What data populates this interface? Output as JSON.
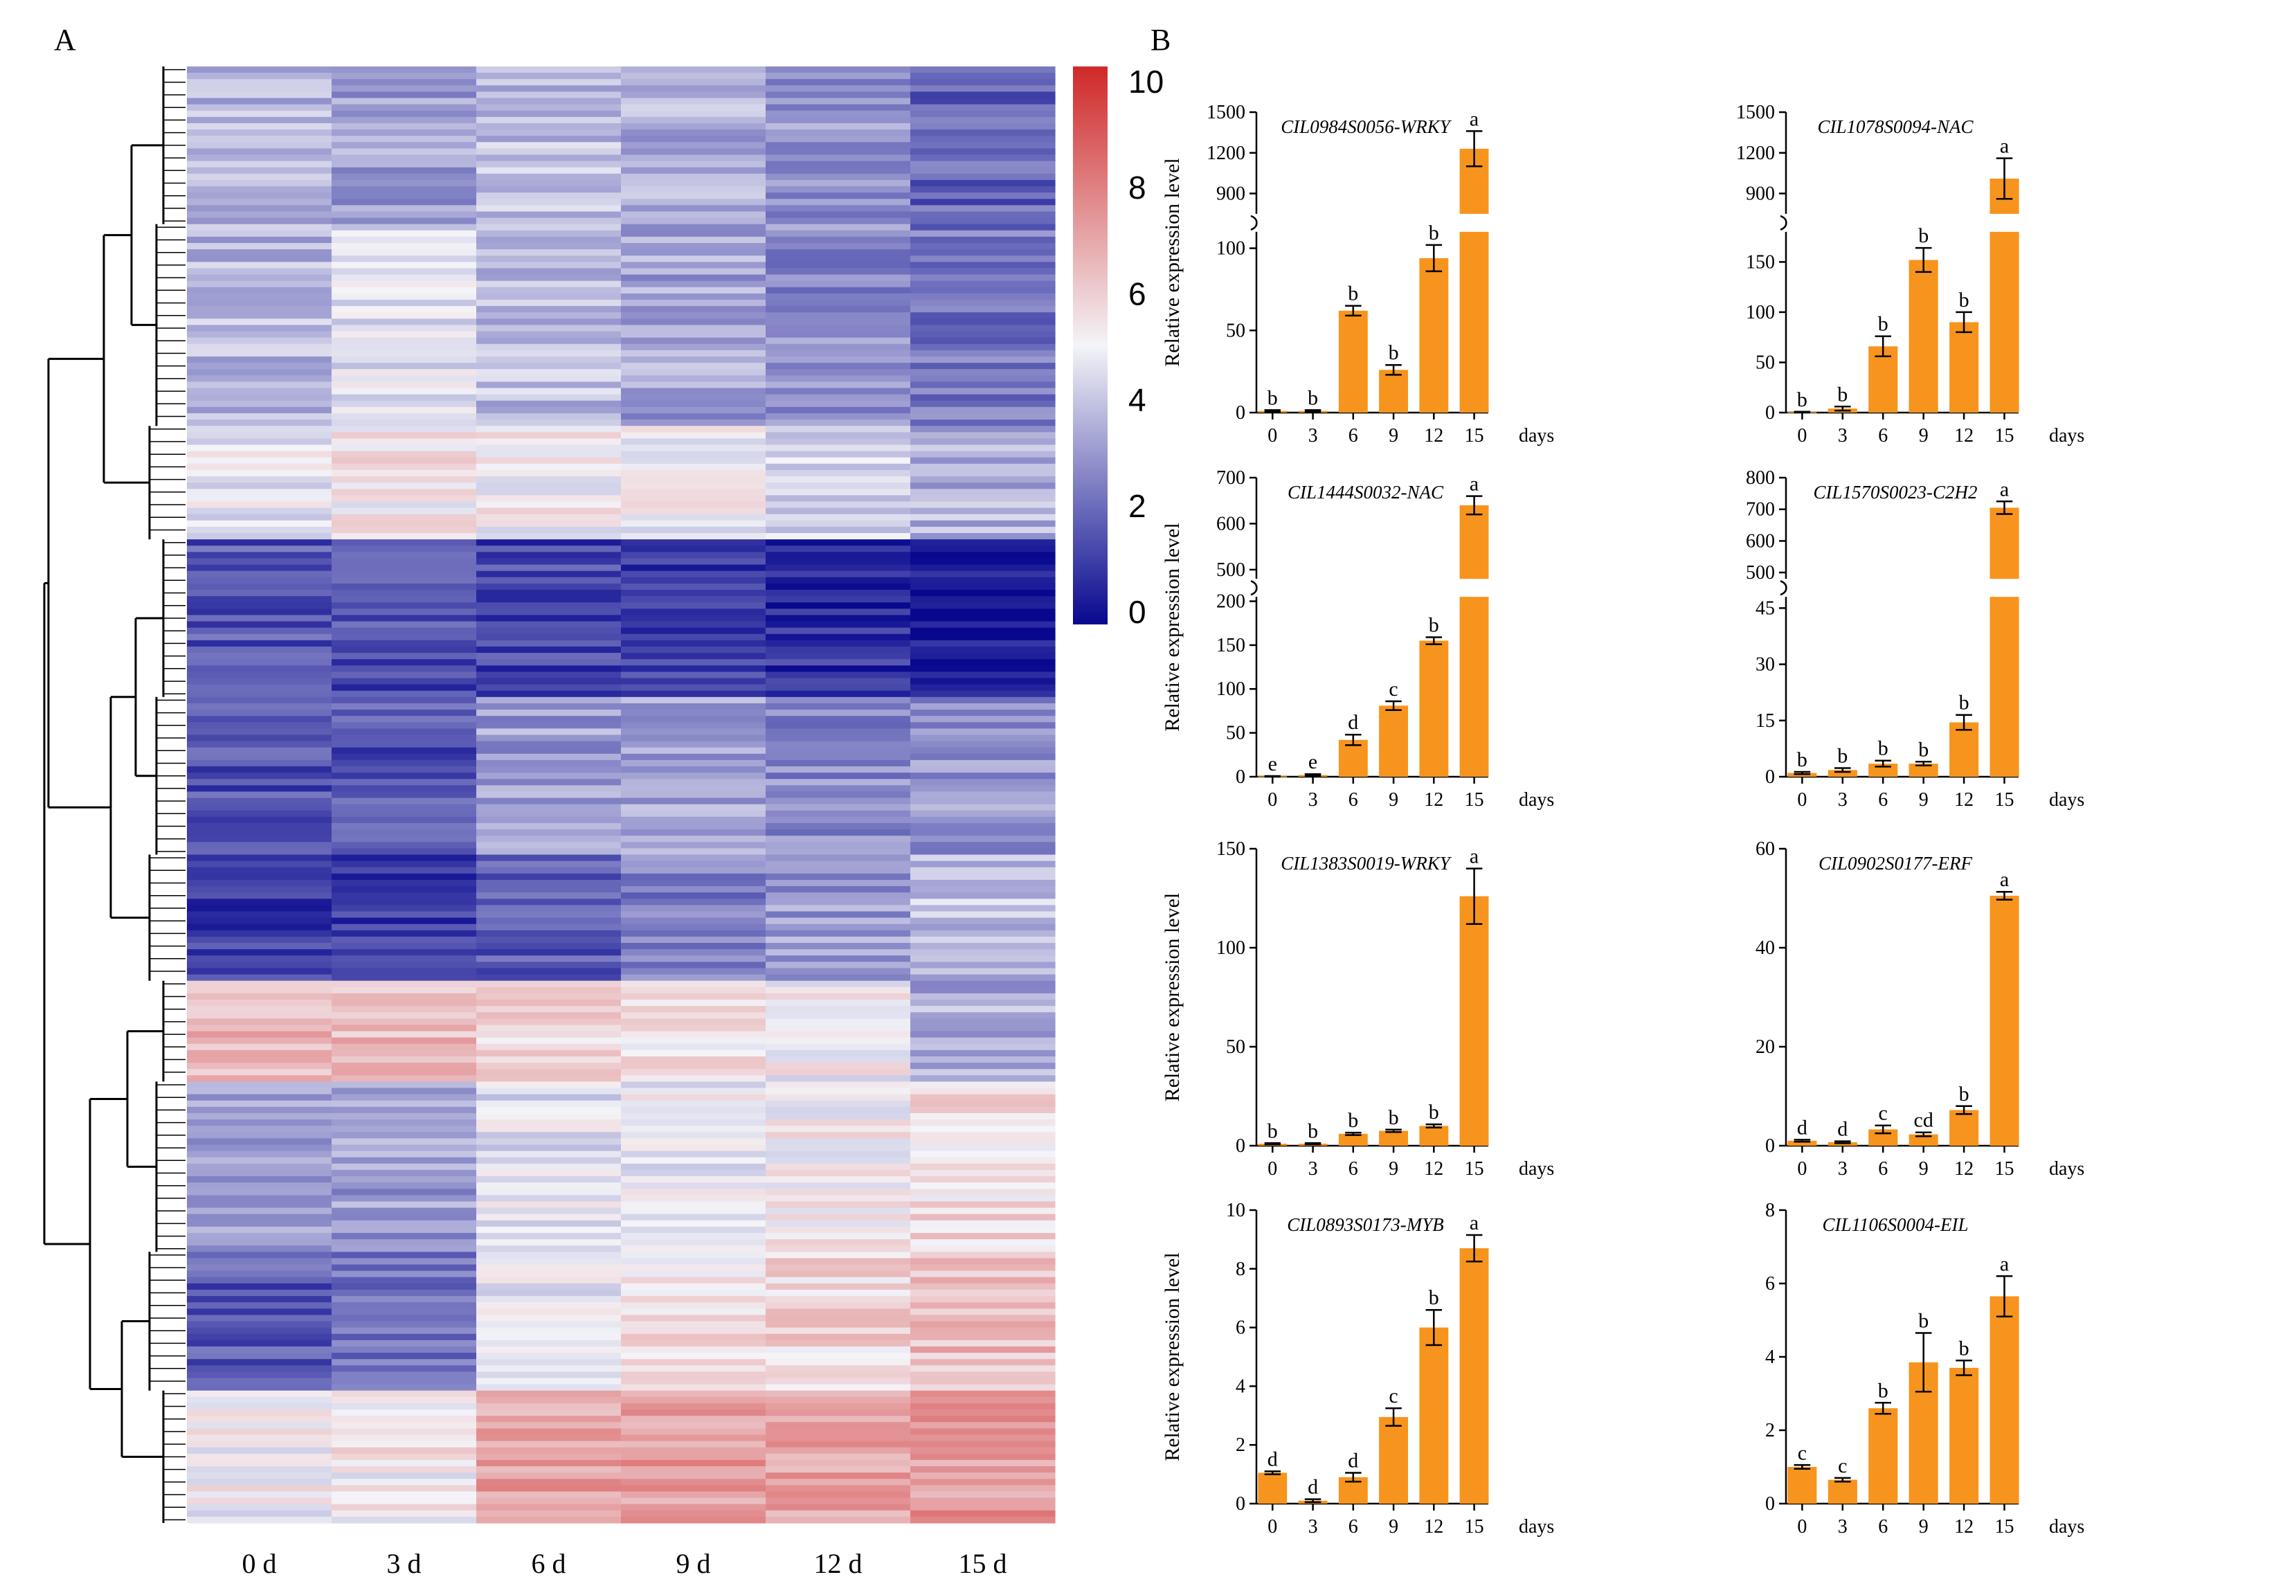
{
  "figure": {
    "panel_a_label": "A",
    "panel_b_label": "B"
  },
  "colors": {
    "bar": "#F7941D",
    "heat_low": "#08088F",
    "heat_mid": "#F4F4F8",
    "heat_high": "#D02828"
  },
  "chart_data": [
    {
      "type": "heatmap",
      "title": "",
      "columns": [
        "0 d",
        "3 d",
        "6 d",
        "9 d",
        "12 d",
        "15 d"
      ],
      "colorbar_ticks": [
        "0",
        "2",
        "4",
        "6",
        "8",
        "10"
      ],
      "value_range": [
        0,
        10
      ],
      "row_clusters": [
        {
          "rows": 25,
          "values": [
            3.6,
            3.2,
            3.8,
            3.5,
            2.9,
            2.0
          ]
        },
        {
          "rows": 32,
          "values": [
            3.7,
            4.6,
            3.8,
            3.3,
            2.8,
            2.4
          ]
        },
        {
          "rows": 18,
          "values": [
            4.7,
            5.3,
            5.1,
            5.0,
            4.4,
            3.6
          ]
        },
        {
          "rows": 25,
          "values": [
            1.6,
            1.4,
            1.3,
            1.0,
            0.8,
            0.5
          ]
        },
        {
          "rows": 25,
          "values": [
            1.6,
            1.6,
            3.2,
            3.4,
            2.8,
            3.0
          ]
        },
        {
          "rows": 20,
          "values": [
            1.2,
            1.0,
            1.8,
            2.4,
            3.1,
            3.9
          ]
        },
        {
          "rows": 16,
          "values": [
            6.6,
            6.4,
            5.8,
            5.4,
            5.0,
            3.5
          ]
        },
        {
          "rows": 27,
          "values": [
            3.3,
            3.2,
            4.6,
            4.9,
            5.2,
            5.6
          ]
        },
        {
          "rows": 22,
          "values": [
            1.7,
            2.0,
            4.6,
            5.4,
            5.7,
            6.4
          ]
        },
        {
          "rows": 21,
          "values": [
            5.0,
            5.2,
            7.0,
            7.1,
            7.0,
            7.2
          ]
        }
      ]
    },
    {
      "type": "bar",
      "title": "CIL0984S0056-WRKY",
      "categories": [
        "0",
        "3",
        "6",
        "9",
        "12",
        "15"
      ],
      "xlabel": "days",
      "ylabel": "Relative expression level",
      "values": [
        1,
        1,
        62,
        26,
        94,
        1230
      ],
      "errors": [
        0.5,
        0.5,
        3,
        3,
        8,
        130
      ],
      "letters": [
        "b",
        "b",
        "b",
        "b",
        "b",
        "a"
      ],
      "segments": [
        {
          "range": [
            0,
            110
          ],
          "ticks": [
            "0",
            "50",
            "100"
          ]
        },
        {
          "range": [
            750,
            1500
          ],
          "ticks": [
            "900",
            "1200",
            "1500"
          ]
        }
      ]
    },
    {
      "type": "bar",
      "title": "CIL1078S0094-NAC",
      "categories": [
        "0",
        "3",
        "6",
        "9",
        "12",
        "15"
      ],
      "xlabel": "days",
      "ylabel": "",
      "values": [
        0.5,
        4,
        66,
        152,
        90,
        1010
      ],
      "errors": [
        0.3,
        2,
        10,
        12,
        10,
        150
      ],
      "letters": [
        "b",
        "b",
        "b",
        "b",
        "b",
        "a"
      ],
      "segments": [
        {
          "range": [
            0,
            180
          ],
          "ticks": [
            "0",
            "50",
            "100",
            "150"
          ]
        },
        {
          "range": [
            750,
            1500
          ],
          "ticks": [
            "900",
            "1200",
            "1500"
          ]
        }
      ]
    },
    {
      "type": "bar",
      "title": "CIL1444S0032-NAC",
      "categories": [
        "0",
        "3",
        "6",
        "9",
        "12",
        "15"
      ],
      "xlabel": "days",
      "ylabel": "Relative expression level",
      "values": [
        0.5,
        2,
        42,
        81,
        155,
        640
      ],
      "errors": [
        0.3,
        1,
        6,
        5,
        4,
        20
      ],
      "letters": [
        "e",
        "e",
        "d",
        "c",
        "b",
        "a"
      ],
      "segments": [
        {
          "range": [
            0,
            205
          ],
          "ticks": [
            "0",
            "50",
            "100",
            "150",
            "200"
          ]
        },
        {
          "range": [
            480,
            700
          ],
          "ticks": [
            "500",
            "600",
            "700"
          ]
        }
      ]
    },
    {
      "type": "bar",
      "title": "CIL1570S0023-C2H2",
      "categories": [
        "0",
        "3",
        "6",
        "9",
        "12",
        "15"
      ],
      "xlabel": "days",
      "ylabel": "",
      "values": [
        1,
        1.8,
        3.5,
        3.5,
        14.5,
        705
      ],
      "errors": [
        0.3,
        0.5,
        0.8,
        0.5,
        2,
        20
      ],
      "letters": [
        "b",
        "b",
        "b",
        "b",
        "b",
        "a"
      ],
      "segments": [
        {
          "range": [
            0,
            48
          ],
          "ticks": [
            "0",
            "15",
            "30",
            "45"
          ]
        },
        {
          "range": [
            480,
            800
          ],
          "ticks": [
            "500",
            "600",
            "700",
            "800"
          ]
        }
      ]
    },
    {
      "type": "bar",
      "title": "CIL1383S0019-WRKY",
      "categories": [
        "0",
        "3",
        "6",
        "9",
        "12",
        "15"
      ],
      "xlabel": "days",
      "ylabel": "Relative expression level",
      "values": [
        1,
        1,
        6,
        7.5,
        10,
        126
      ],
      "errors": [
        0.3,
        0.3,
        0.6,
        0.6,
        0.8,
        14
      ],
      "letters": [
        "b",
        "b",
        "b",
        "b",
        "b",
        "a"
      ],
      "ylim": [
        0,
        150
      ],
      "yticks": [
        "0",
        "50",
        "100",
        "150"
      ]
    },
    {
      "type": "bar",
      "title": "CIL0902S0177-ERF",
      "categories": [
        "0",
        "3",
        "6",
        "9",
        "12",
        "15"
      ],
      "xlabel": "days",
      "ylabel": "",
      "values": [
        1,
        0.7,
        3.3,
        2.3,
        7.2,
        50.5
      ],
      "errors": [
        0.2,
        0.2,
        0.8,
        0.4,
        0.8,
        0.8
      ],
      "letters": [
        "d",
        "d",
        "c",
        "cd",
        "b",
        "a"
      ],
      "ylim": [
        0,
        60
      ],
      "yticks": [
        "0",
        "20",
        "40",
        "60"
      ]
    },
    {
      "type": "bar",
      "title": "CIL0893S0173-MYB",
      "categories": [
        "0",
        "3",
        "6",
        "9",
        "12",
        "15"
      ],
      "xlabel": "days",
      "ylabel": "Relative expression level",
      "values": [
        1.05,
        0.1,
        0.9,
        2.95,
        6.0,
        8.7
      ],
      "errors": [
        0.05,
        0.05,
        0.15,
        0.3,
        0.6,
        0.45
      ],
      "letters": [
        "d",
        "d",
        "d",
        "c",
        "b",
        "a"
      ],
      "ylim": [
        0,
        10
      ],
      "yticks": [
        "0",
        "2",
        "4",
        "6",
        "8",
        "10"
      ]
    },
    {
      "type": "bar",
      "title": "CIL1106S0004-EIL",
      "categories": [
        "0",
        "3",
        "6",
        "9",
        "12",
        "15"
      ],
      "xlabel": "days",
      "ylabel": "",
      "values": [
        1.0,
        0.65,
        2.6,
        3.85,
        3.7,
        5.65
      ],
      "errors": [
        0.05,
        0.05,
        0.15,
        0.8,
        0.2,
        0.55
      ],
      "letters": [
        "c",
        "c",
        "b",
        "b",
        "b",
        "a"
      ],
      "ylim": [
        0,
        8
      ],
      "yticks": [
        "0",
        "2",
        "4",
        "6",
        "8"
      ]
    }
  ]
}
